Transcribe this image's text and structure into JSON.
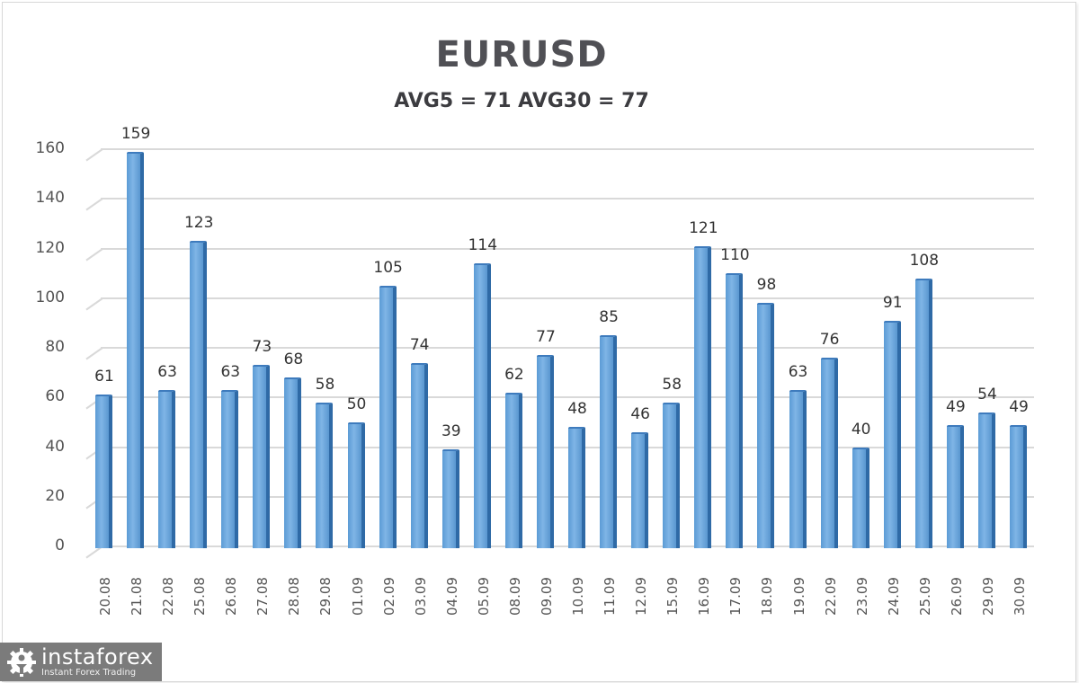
{
  "chart_data": {
    "type": "bar",
    "title": "EURUSD",
    "subtitle": "AVG5 = 71 AVG30 = 77",
    "xlabel": "",
    "ylabel": "",
    "ylim": [
      0,
      160
    ],
    "yticks": [
      0,
      20,
      40,
      60,
      80,
      100,
      120,
      140,
      160
    ],
    "grid": true,
    "legend": null,
    "categories": [
      "20.08",
      "21.08",
      "22.08",
      "25.08",
      "26.08",
      "27.08",
      "28.08",
      "29.08",
      "01.09",
      "02.09",
      "03.09",
      "04.09",
      "05.09",
      "08.09",
      "09.09",
      "10.09",
      "11.09",
      "12.09",
      "15.09",
      "16.09",
      "17.09",
      "18.09",
      "19.09",
      "22.09",
      "23.09",
      "24.09",
      "25.09",
      "26.09",
      "29.09",
      "30.09"
    ],
    "values": [
      61,
      159,
      63,
      123,
      63,
      73,
      68,
      58,
      50,
      105,
      74,
      39,
      114,
      62,
      77,
      48,
      85,
      46,
      58,
      121,
      110,
      98,
      63,
      76,
      40,
      91,
      108,
      49,
      54,
      49
    ],
    "bar_color": "#5b9bd5"
  },
  "header": {
    "title": "EURUSD",
    "subtitle": "AVG5 = 71 AVG30 = 77"
  },
  "axis": {
    "y_ticks": [
      "160",
      "140",
      "120",
      "100",
      "80",
      "60",
      "40",
      "20",
      "0"
    ]
  },
  "logo": {
    "name": "instaforex",
    "tagline": "Instant Forex Trading",
    "icon": "gear-person-icon"
  }
}
